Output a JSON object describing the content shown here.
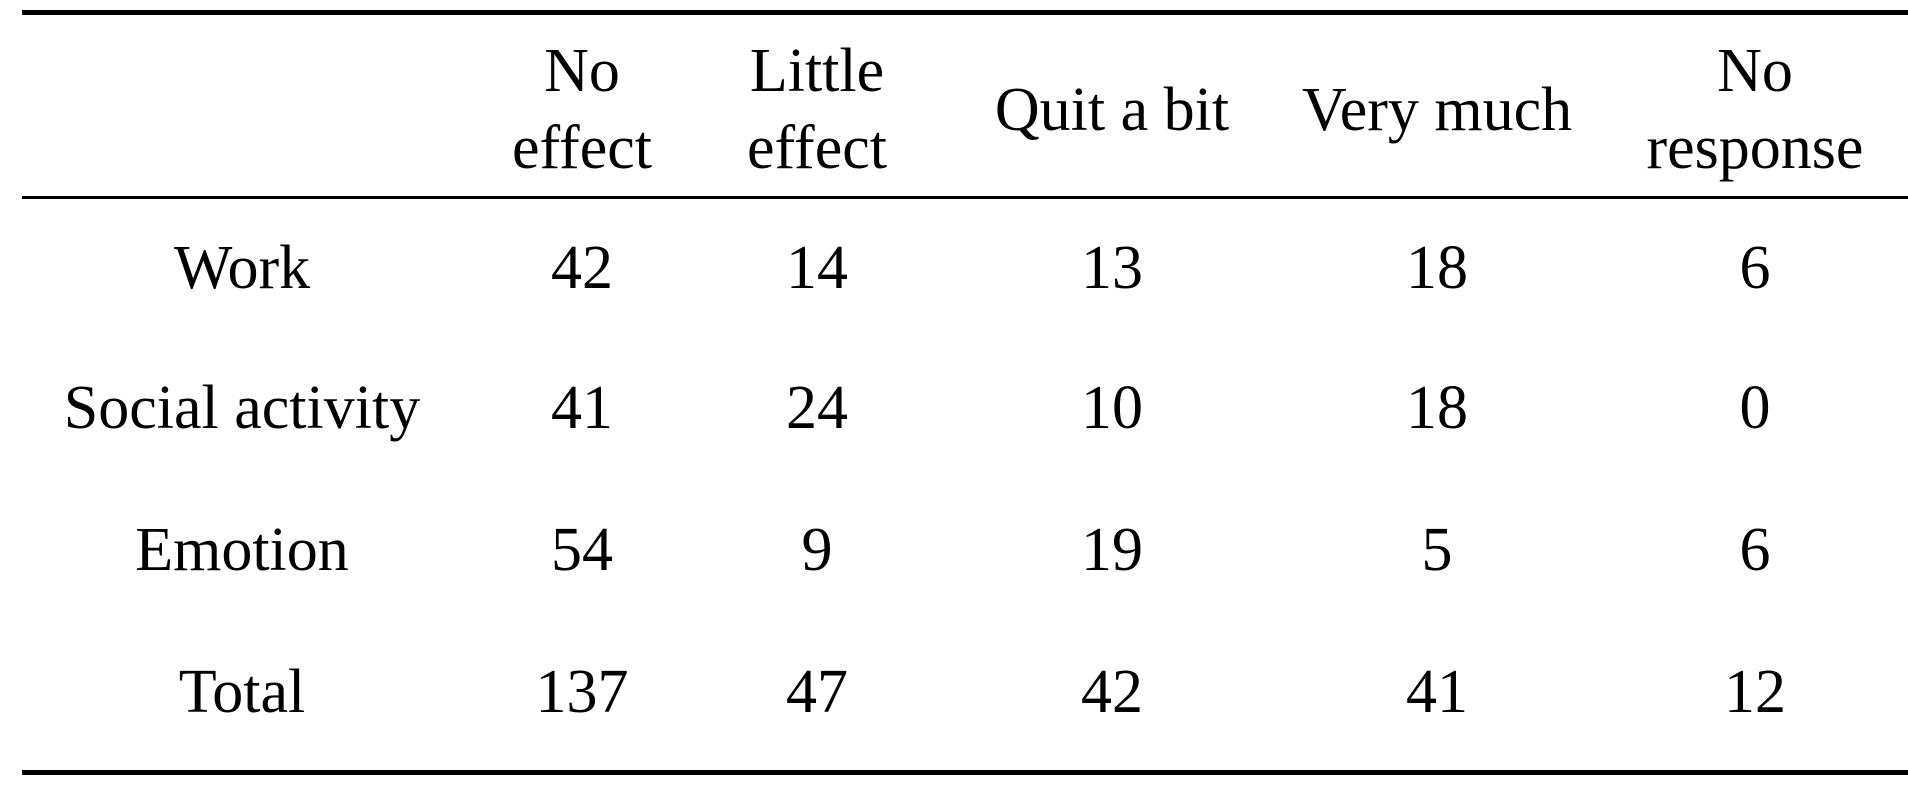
{
  "table": {
    "headers": [
      "",
      [
        "No",
        "effect"
      ],
      [
        "Little",
        "effect"
      ],
      [
        "Quit a bit"
      ],
      [
        "Very much"
      ],
      [
        "No",
        "response"
      ]
    ],
    "rows": [
      {
        "label": "Work",
        "values": [
          "42",
          "14",
          "13",
          "18",
          "6"
        ]
      },
      {
        "label": "Social activity",
        "values": [
          "41",
          "24",
          "10",
          "18",
          "0"
        ]
      },
      {
        "label": "Emotion",
        "values": [
          "54",
          "9",
          "19",
          "5",
          "6"
        ]
      },
      {
        "label": "Total",
        "values": [
          "137",
          "47",
          "42",
          "41",
          "12"
        ]
      }
    ]
  }
}
